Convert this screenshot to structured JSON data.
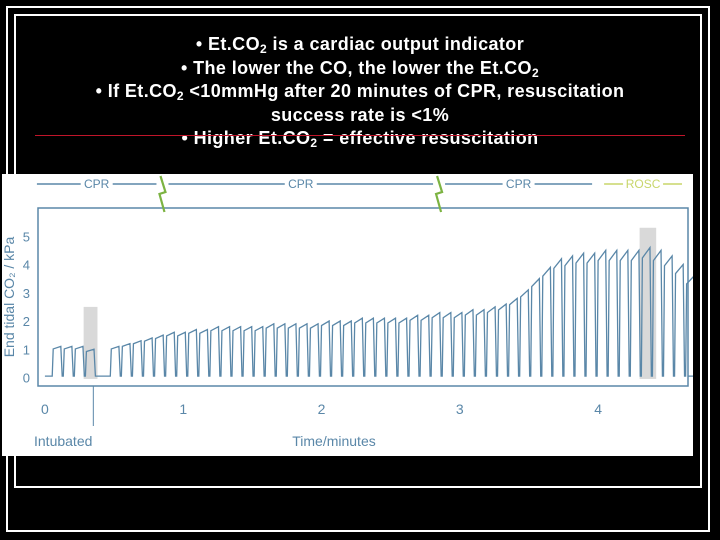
{
  "slide": {
    "bullets": [
      {
        "prefix": "• Et.CO",
        "sub": "2",
        "suffix": " is a cardiac output indicator"
      },
      {
        "prefix": "• The lower the CO, the lower the Et.CO",
        "sub": "2",
        "suffix": ""
      },
      {
        "prefix": "• If Et.CO",
        "sub": "2",
        "suffix": " <10mmHg after 20 minutes of CPR, resuscitation"
      },
      {
        "prefix": "success rate is <1%",
        "sub": "",
        "suffix": ""
      },
      {
        "prefix": "• Higher Et.CO",
        "sub": "2",
        "suffix": " = effective resuscitation"
      }
    ]
  },
  "colors": {
    "background": "#000000",
    "text": "#ffffff",
    "rule": "#c0152a",
    "chart_line": "#5a87a8",
    "cpr_band": "#5a87a8",
    "rosc_band": "#c8d66a",
    "shock_icon": "#7cb342",
    "highlight": "#d9d9d9"
  },
  "chart_data": {
    "type": "line",
    "phases": [
      {
        "label": "CPR",
        "start": 0,
        "end": 0.85
      },
      {
        "label": "CPR",
        "start": 0.85,
        "end": 2.85
      },
      {
        "label": "CPR",
        "start": 2.85,
        "end": 4.0
      },
      {
        "label": "ROSC",
        "start": 4.0,
        "end": 4.65
      }
    ],
    "shocks": [
      0.85,
      2.85
    ],
    "xlabel": "Time/minutes",
    "x_marker_label": "Intubated",
    "intubated_at": 0.35,
    "ylabel": "End tidal CO₂ / kPa",
    "xticks": [
      "0",
      "1",
      "2",
      "3",
      "4"
    ],
    "yticks": [
      "0",
      "1",
      "2",
      "3",
      "4",
      "5"
    ],
    "xlim": [
      -0.05,
      4.65
    ],
    "ylim": [
      -0.3,
      6.0
    ],
    "highlights": [
      {
        "start": 0.28,
        "end": 0.38
      },
      {
        "start": 4.3,
        "end": 4.42
      }
    ],
    "peaks": [
      {
        "t": 0.06,
        "v": 1.1
      },
      {
        "t": 0.14,
        "v": 1.1
      },
      {
        "t": 0.22,
        "v": 1.1
      },
      {
        "t": 0.3,
        "v": 1.0
      },
      {
        "t": 0.48,
        "v": 1.1
      },
      {
        "t": 0.56,
        "v": 1.2
      },
      {
        "t": 0.64,
        "v": 1.3
      },
      {
        "t": 0.72,
        "v": 1.4
      },
      {
        "t": 0.8,
        "v": 1.5
      },
      {
        "t": 0.88,
        "v": 1.6
      },
      {
        "t": 0.96,
        "v": 1.6
      },
      {
        "t": 1.04,
        "v": 1.7
      },
      {
        "t": 1.12,
        "v": 1.7
      },
      {
        "t": 1.2,
        "v": 1.8
      },
      {
        "t": 1.28,
        "v": 1.8
      },
      {
        "t": 1.36,
        "v": 1.8
      },
      {
        "t": 1.44,
        "v": 1.8
      },
      {
        "t": 1.52,
        "v": 1.8
      },
      {
        "t": 1.6,
        "v": 1.9
      },
      {
        "t": 1.68,
        "v": 1.9
      },
      {
        "t": 1.76,
        "v": 1.9
      },
      {
        "t": 1.84,
        "v": 1.9
      },
      {
        "t": 1.92,
        "v": 1.9
      },
      {
        "t": 2.0,
        "v": 2.0
      },
      {
        "t": 2.08,
        "v": 2.0
      },
      {
        "t": 2.16,
        "v": 2.0
      },
      {
        "t": 2.24,
        "v": 2.1
      },
      {
        "t": 2.32,
        "v": 2.1
      },
      {
        "t": 2.4,
        "v": 2.1
      },
      {
        "t": 2.48,
        "v": 2.1
      },
      {
        "t": 2.56,
        "v": 2.1
      },
      {
        "t": 2.64,
        "v": 2.2
      },
      {
        "t": 2.72,
        "v": 2.2
      },
      {
        "t": 2.8,
        "v": 2.3
      },
      {
        "t": 2.88,
        "v": 2.3
      },
      {
        "t": 2.96,
        "v": 2.3
      },
      {
        "t": 3.04,
        "v": 2.4
      },
      {
        "t": 3.12,
        "v": 2.4
      },
      {
        "t": 3.2,
        "v": 2.5
      },
      {
        "t": 3.28,
        "v": 2.6
      },
      {
        "t": 3.36,
        "v": 2.8
      },
      {
        "t": 3.44,
        "v": 3.1
      },
      {
        "t": 3.52,
        "v": 3.5
      },
      {
        "t": 3.6,
        "v": 3.9
      },
      {
        "t": 3.68,
        "v": 4.2
      },
      {
        "t": 3.76,
        "v": 4.3
      },
      {
        "t": 3.84,
        "v": 4.4
      },
      {
        "t": 3.92,
        "v": 4.4
      },
      {
        "t": 4.0,
        "v": 4.5
      },
      {
        "t": 4.08,
        "v": 4.5
      },
      {
        "t": 4.16,
        "v": 4.5
      },
      {
        "t": 4.24,
        "v": 4.5
      },
      {
        "t": 4.32,
        "v": 4.6
      },
      {
        "t": 4.4,
        "v": 4.5
      },
      {
        "t": 4.48,
        "v": 4.3
      },
      {
        "t": 4.56,
        "v": 4.0
      },
      {
        "t": 4.64,
        "v": 3.6
      }
    ],
    "grid": false
  }
}
